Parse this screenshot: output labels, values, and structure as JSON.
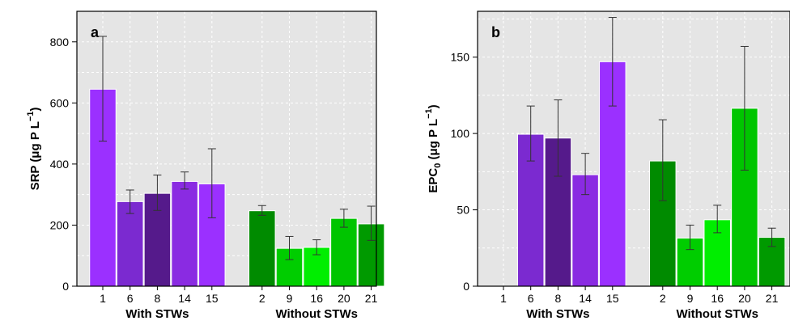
{
  "chart_data": [
    {
      "type": "bar",
      "panel_label": "a",
      "ylabel_main": "SRP (",
      "ylabel_unit": "μg P L",
      "ylabel_exp": "−1",
      "ylabel_close": ")",
      "ylim": [
        0,
        900
      ],
      "yticks": [
        0,
        200,
        400,
        600,
        800
      ],
      "grid": true,
      "groups": [
        {
          "label": "With STWs",
          "categories": [
            "1",
            "6",
            "8",
            "14",
            "15"
          ],
          "values": [
            645,
            277,
            304,
            343,
            335
          ],
          "err_low": [
            475,
            238,
            248,
            318,
            224
          ],
          "err_high": [
            818,
            315,
            364,
            374,
            450
          ],
          "colors": [
            "#9b30ff",
            "#7b2ad0",
            "#551a8b",
            "#8a2be2",
            "#9b30ff"
          ]
        },
        {
          "label": "Without STWs",
          "categories": [
            "2",
            "9",
            "16",
            "20",
            "21"
          ],
          "values": [
            247,
            124,
            127,
            222,
            204
          ],
          "err_low": [
            232,
            87,
            103,
            193,
            150
          ],
          "err_high": [
            264,
            163,
            152,
            252,
            262
          ],
          "colors": [
            "#008b00",
            "#00cd00",
            "#00ee00",
            "#00c500",
            "#009a00"
          ]
        }
      ]
    },
    {
      "type": "bar",
      "panel_label": "b",
      "ylabel_main": "EPC",
      "ylabel_sub": "0",
      "ylabel_unit": " (μg P L",
      "ylabel_exp": "−1",
      "ylabel_close": ")",
      "ylim": [
        0,
        180
      ],
      "yticks": [
        0,
        50,
        100,
        150
      ],
      "grid": true,
      "groups": [
        {
          "label": "With STWs",
          "categories": [
            "1",
            "6",
            "8",
            "14",
            "15"
          ],
          "values": [
            null,
            99.5,
            97,
            73,
            147
          ],
          "err_low": [
            null,
            82,
            72,
            60,
            118
          ],
          "err_high": [
            null,
            118,
            122,
            87,
            176
          ],
          "colors": [
            "#9b30ff",
            "#7b2ad0",
            "#551a8b",
            "#8a2be2",
            "#9b30ff"
          ]
        },
        {
          "label": "Without STWs",
          "categories": [
            "2",
            "9",
            "16",
            "20",
            "21"
          ],
          "values": [
            82,
            31.5,
            43.5,
            116.5,
            32
          ],
          "err_low": [
            56,
            24,
            35,
            76,
            26
          ],
          "err_high": [
            109,
            40,
            53,
            157,
            38
          ],
          "colors": [
            "#008b00",
            "#00cd00",
            "#00ee00",
            "#00c500",
            "#009a00"
          ]
        }
      ]
    }
  ]
}
